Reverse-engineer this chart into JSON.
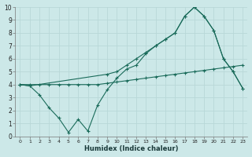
{
  "xlabel": "Humidex (Indice chaleur)",
  "bg_color": "#cce8e8",
  "grid_color": "#b8d8d8",
  "line_color": "#1a6b5a",
  "xlim": [
    -0.5,
    23.5
  ],
  "ylim": [
    0,
    10
  ],
  "line_zigzag_x": [
    0,
    1,
    2,
    3,
    4,
    5,
    6,
    7,
    8,
    9,
    10,
    11,
    12,
    13,
    14,
    15,
    16,
    17,
    18,
    19,
    20,
    21,
    22,
    23
  ],
  "line_zigzag_y": [
    4.0,
    3.9,
    3.2,
    2.2,
    1.4,
    0.3,
    1.3,
    0.4,
    2.4,
    3.6,
    4.5,
    5.2,
    5.5,
    6.4,
    7.0,
    7.5,
    8.0,
    9.3,
    10.0,
    9.3,
    8.2,
    6.0,
    5.0,
    3.7
  ],
  "line_bottom_x": [
    0,
    1,
    2,
    3,
    4,
    5,
    6,
    7,
    8,
    9,
    10,
    11,
    12,
    13,
    14,
    15,
    16,
    17,
    18,
    19,
    20,
    21,
    22,
    23
  ],
  "line_bottom_y": [
    4.0,
    4.0,
    4.0,
    4.0,
    4.0,
    4.0,
    4.0,
    4.0,
    4.0,
    4.1,
    4.2,
    4.3,
    4.4,
    4.5,
    4.6,
    4.7,
    4.8,
    4.9,
    5.0,
    5.1,
    5.2,
    5.3,
    5.4,
    5.5
  ],
  "line_top_x": [
    0,
    1,
    9,
    10,
    11,
    12,
    13,
    14,
    15,
    16,
    17,
    18,
    19,
    20,
    21,
    22,
    23
  ],
  "line_top_y": [
    4.0,
    3.9,
    4.8,
    5.0,
    5.5,
    6.0,
    6.5,
    7.0,
    7.5,
    8.0,
    9.3,
    10.0,
    9.3,
    8.2,
    6.0,
    5.0,
    3.7
  ]
}
